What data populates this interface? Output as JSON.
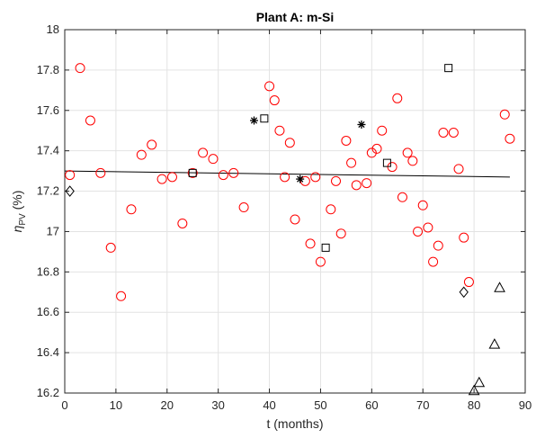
{
  "chart_data": {
    "type": "scatter",
    "title": "Plant A: m-Si",
    "xlabel": "t (months)",
    "ylabel_main": "η",
    "ylabel_sub": "PV",
    "ylabel_unit": " (%)",
    "xlim": [
      0,
      90
    ],
    "ylim": [
      16.2,
      18
    ],
    "xticks": [
      0,
      10,
      20,
      30,
      40,
      50,
      60,
      70,
      80,
      90
    ],
    "yticks": [
      16.2,
      16.4,
      16.6,
      16.8,
      17,
      17.2,
      17.4,
      17.6,
      17.8,
      18
    ],
    "grid": true,
    "series": [
      {
        "marker": "circle",
        "color": "#ff0000",
        "x": [
          1,
          3,
          5,
          7,
          9,
          11,
          13,
          15,
          17,
          19,
          21,
          23,
          25,
          27,
          29,
          31,
          33,
          35,
          40,
          41,
          42,
          43,
          44,
          45,
          47,
          48,
          49,
          50,
          52,
          53,
          54,
          55,
          56,
          57,
          59,
          60,
          61,
          62,
          64,
          65,
          66,
          67,
          68,
          69,
          70,
          71,
          72,
          73,
          74,
          76,
          77,
          78,
          79,
          86,
          87
        ],
        "y": [
          17.28,
          17.81,
          17.55,
          17.29,
          16.92,
          16.68,
          17.11,
          17.38,
          17.43,
          17.26,
          17.27,
          17.04,
          17.29,
          17.39,
          17.36,
          17.28,
          17.29,
          17.12,
          17.72,
          17.65,
          17.5,
          17.27,
          17.44,
          17.06,
          17.25,
          16.94,
          17.27,
          16.85,
          17.11,
          17.25,
          16.99,
          17.45,
          17.34,
          17.23,
          17.24,
          17.39,
          17.41,
          17.5,
          17.32,
          17.66,
          17.17,
          17.39,
          17.35,
          17.0,
          17.13,
          17.02,
          16.85,
          16.93,
          17.49,
          17.49,
          17.31,
          16.97,
          16.75,
          17.58,
          17.46
        ]
      },
      {
        "marker": "square",
        "color": "#000000",
        "x": [
          25,
          39,
          51,
          63,
          75
        ],
        "y": [
          17.29,
          17.56,
          16.92,
          17.34,
          17.81
        ]
      },
      {
        "marker": "asterisk",
        "color": "#000000",
        "x": [
          37,
          46,
          58
        ],
        "y": [
          17.55,
          17.26,
          17.53
        ]
      },
      {
        "marker": "diamond",
        "color": "#000000",
        "x": [
          1,
          78
        ],
        "y": [
          17.2,
          16.7
        ]
      },
      {
        "marker": "triangle",
        "color": "#000000",
        "x": [
          80,
          81,
          84,
          85
        ],
        "y": [
          16.21,
          16.25,
          16.44,
          16.72
        ]
      }
    ],
    "trendline": {
      "color": "#000000",
      "x": [
        0,
        87
      ],
      "y": [
        17.3,
        17.27
      ]
    }
  }
}
